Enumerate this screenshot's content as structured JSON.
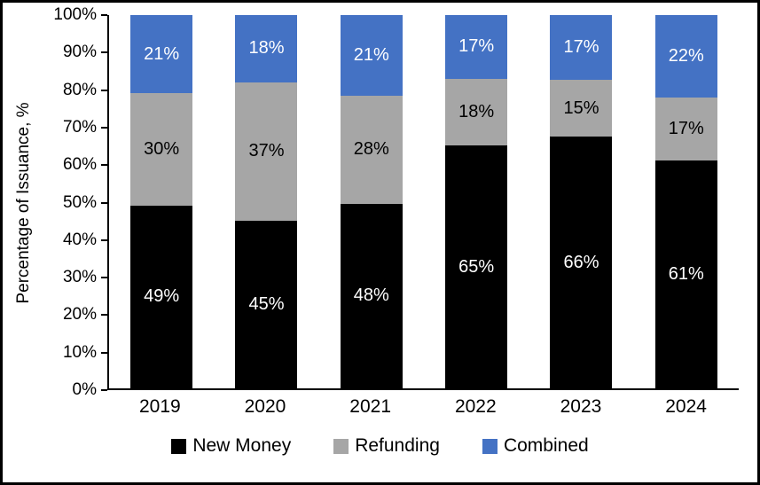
{
  "chart_data": {
    "type": "bar",
    "stacked": true,
    "title": "",
    "ylabel": "Percentage of Issuance, %",
    "xlabel": "",
    "ylim": [
      0,
      100
    ],
    "grid": false,
    "legend_position": "bottom",
    "categories": [
      "2019",
      "2020",
      "2021",
      "2022",
      "2023",
      "2024"
    ],
    "ytick_labels": [
      "0%",
      "10%",
      "20%",
      "30%",
      "40%",
      "50%",
      "60%",
      "70%",
      "80%",
      "90%",
      "100%"
    ],
    "series": [
      {
        "name": "New Money",
        "color": "#000000",
        "label_color": "#ffffff",
        "values": [
          49,
          45,
          48,
          65,
          66,
          61
        ]
      },
      {
        "name": "Refunding",
        "color": "#a6a6a6",
        "label_color": "#000000",
        "values": [
          30,
          37,
          28,
          18,
          15,
          17
        ]
      },
      {
        "name": "Combined",
        "color": "#4472c4",
        "label_color": "#ffffff",
        "values": [
          21,
          18,
          21,
          17,
          17,
          22
        ]
      }
    ]
  }
}
